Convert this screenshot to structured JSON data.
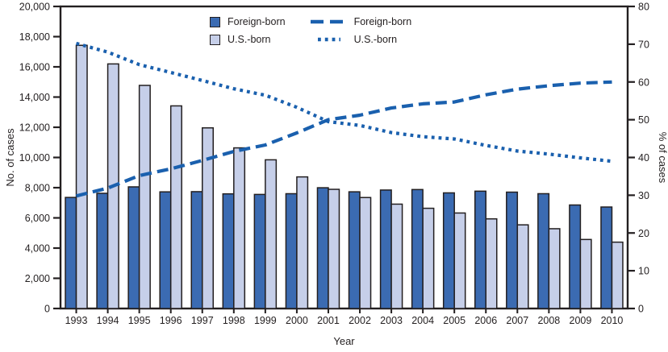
{
  "chart_data": {
    "type": "bar+line",
    "title": "",
    "xlabel": "Year",
    "categories": [
      "1993",
      "1994",
      "1995",
      "1996",
      "1997",
      "1998",
      "1999",
      "2000",
      "2001",
      "2002",
      "2003",
      "2004",
      "2005",
      "2006",
      "2007",
      "2008",
      "2009",
      "2010"
    ],
    "left_axis": {
      "label": "No. of cases",
      "min": 0,
      "max": 20000,
      "step": 2000,
      "tick_labels": [
        "0",
        "2,000",
        "4,000",
        "6,000",
        "8,000",
        "10,000",
        "12,000",
        "14,000",
        "16,000",
        "18,000",
        "20,000"
      ]
    },
    "right_axis": {
      "label": "% of cases",
      "min": 0,
      "max": 80,
      "step": 10,
      "tick_labels": [
        "0",
        "10",
        "20",
        "30",
        "40",
        "50",
        "60",
        "70",
        "80"
      ]
    },
    "bar_series": [
      {
        "name": "Foreign-born",
        "axis": "left",
        "color": "#3b6bb2",
        "values": [
          7354,
          7627,
          8054,
          7723,
          7737,
          7591,
          7553,
          7601,
          7996,
          7727,
          7844,
          7876,
          7656,
          7769,
          7705,
          7602,
          6854,
          6720
        ]
      },
      {
        "name": "U.S.-born",
        "axis": "left",
        "color": "#c6cfe9",
        "values": [
          17425,
          16194,
          14772,
          13416,
          11960,
          10636,
          9845,
          8714,
          7891,
          7348,
          6910,
          6636,
          6323,
          5935,
          5539,
          5283,
          4570,
          4393
        ]
      }
    ],
    "line_series": [
      {
        "name": "Foreign-born",
        "axis": "right",
        "style": "dashed",
        "color": "#1a60ae",
        "values": [
          29.8,
          31.9,
          35.2,
          37.0,
          39.2,
          41.6,
          43.3,
          46.5,
          50.0,
          51.2,
          53.1,
          54.2,
          54.7,
          56.6,
          58.1,
          59.0,
          59.7,
          60.0
        ]
      },
      {
        "name": "U.S.-born",
        "axis": "right",
        "style": "dotted",
        "color": "#1a60ae",
        "values": [
          70.2,
          67.9,
          64.6,
          62.5,
          60.4,
          58.2,
          56.5,
          53.3,
          49.5,
          48.5,
          46.6,
          45.5,
          44.9,
          43.2,
          41.7,
          40.9,
          39.9,
          39.0
        ]
      }
    ],
    "legend_position": "top-center",
    "grid": false,
    "colors": {
      "bar_outline": "#231f20",
      "axis": "#231f20",
      "text": "#231f20"
    }
  }
}
